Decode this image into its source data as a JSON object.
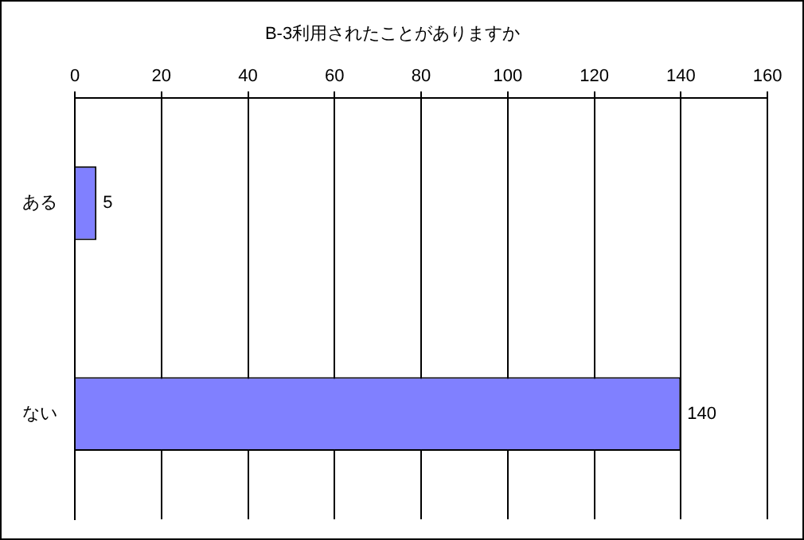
{
  "chart_data": {
    "type": "bar",
    "orientation": "horizontal",
    "title": "B-3利用されたことがありますか",
    "categories": [
      "ある",
      "ない"
    ],
    "values": [
      5,
      140
    ],
    "color": "#8080ff",
    "xlim": [
      0,
      160
    ],
    "xticks": [
      0,
      20,
      40,
      60,
      80,
      100,
      120,
      140,
      160
    ],
    "grid": "x",
    "data_labels": true
  }
}
